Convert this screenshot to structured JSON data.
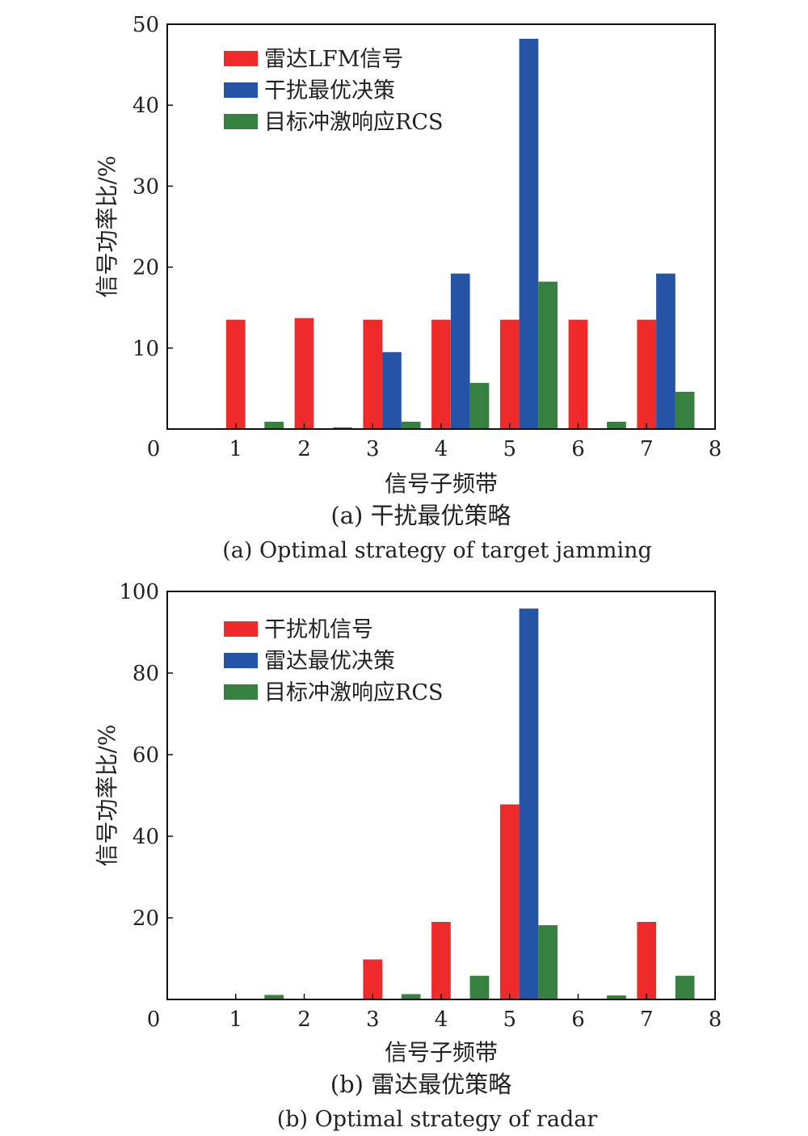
{
  "chart_data": [
    {
      "type": "bar",
      "caption_cn": "(a) 干扰最优策略",
      "caption_en": "(a) Optimal strategy of target jamming",
      "xlabel": "信号子频带",
      "ylabel": "信号功率比/%",
      "xlim": [
        0,
        8
      ],
      "ylim": [
        0,
        50
      ],
      "xticks": [
        0,
        1,
        2,
        3,
        4,
        5,
        6,
        7,
        8
      ],
      "yticks": [
        0,
        10,
        20,
        30,
        40,
        50
      ],
      "ytick_labels": [
        "0",
        "10",
        "20",
        "30",
        "40",
        "50"
      ],
      "categories": [
        1,
        2,
        3,
        4,
        5,
        6,
        7
      ],
      "legend_position": "top-left",
      "grid": false,
      "series": [
        {
          "name": "雷达LFM信号",
          "color": "#ee2a2a",
          "values": [
            13.5,
            13.7,
            13.5,
            13.5,
            13.5,
            13.5,
            13.5
          ]
        },
        {
          "name": "干扰最优决策",
          "color": "#2553a6",
          "values": [
            0,
            0,
            9.5,
            19.2,
            48.2,
            0,
            19.2
          ]
        },
        {
          "name": "目标冲激响应RCS",
          "color": "#36813f",
          "values": [
            0.9,
            0.2,
            0.9,
            5.7,
            18.2,
            0.9,
            4.6
          ]
        }
      ]
    },
    {
      "type": "bar",
      "caption_cn": "(b) 雷达最优策略",
      "caption_en": "(b) Optimal strategy of radar",
      "xlabel": "信号子频带",
      "ylabel": "信号功率比/%",
      "xlim": [
        0,
        8
      ],
      "ylim": [
        0,
        100
      ],
      "xticks": [
        0,
        1,
        2,
        3,
        4,
        5,
        6,
        7,
        8
      ],
      "yticks": [
        0,
        20,
        40,
        60,
        80,
        100
      ],
      "ytick_labels": [
        "0",
        "20",
        "40",
        "60",
        "80",
        "100"
      ],
      "categories": [
        1,
        2,
        3,
        4,
        5,
        6,
        7
      ],
      "legend_position": "top-left",
      "grid": false,
      "series": [
        {
          "name": "干扰机信号",
          "color": "#ee2a2a",
          "values": [
            0,
            0,
            9.8,
            19.0,
            47.8,
            0,
            19.0
          ]
        },
        {
          "name": "雷达最优决策",
          "color": "#2553a6",
          "values": [
            0,
            0,
            0,
            0,
            95.8,
            0,
            0
          ]
        },
        {
          "name": "目标冲激响应RCS",
          "color": "#36813f",
          "values": [
            1.1,
            0,
            1.3,
            5.8,
            18.2,
            1.0,
            5.8
          ]
        }
      ]
    }
  ]
}
